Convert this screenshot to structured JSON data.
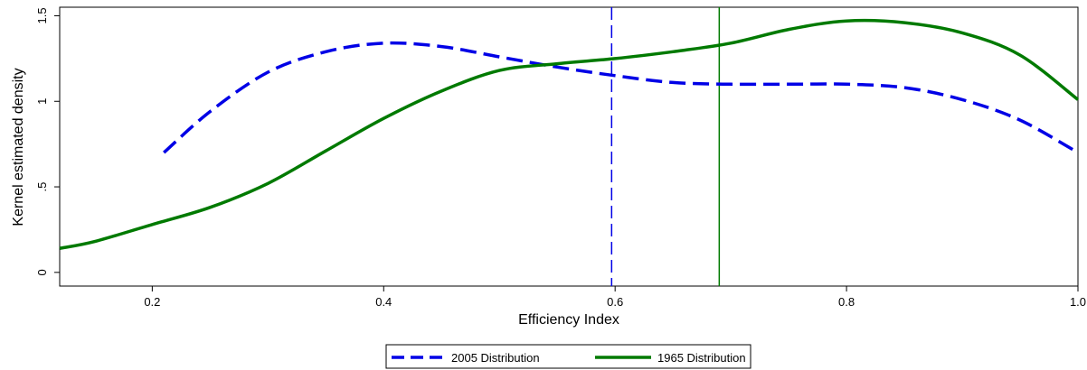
{
  "chart_data": {
    "type": "line",
    "xlabel": "Efficiency Index",
    "ylabel": "Kernel estimated density",
    "xlim": [
      0.12,
      1.0
    ],
    "ylim": [
      -0.08,
      1.55
    ],
    "x_ticks": [
      {
        "value": 0.2,
        "label": "0.2"
      },
      {
        "value": 0.4,
        "label": "0.4"
      },
      {
        "value": 0.6,
        "label": "0.6"
      },
      {
        "value": 0.8,
        "label": "0.8"
      },
      {
        "value": 1.0,
        "label": "1.0"
      }
    ],
    "y_ticks": [
      {
        "value": 0,
        "label": "0"
      },
      {
        "value": 0.5,
        "label": ".5"
      },
      {
        "value": 1,
        "label": "1"
      },
      {
        "value": 1.5,
        "label": "1.5"
      }
    ],
    "grid": false,
    "legend_position": "bottom-center",
    "series": [
      {
        "name": "2005 Distribution",
        "color": "#0000e6",
        "style": "dashed",
        "x": [
          0.21,
          0.25,
          0.3,
          0.35,
          0.4,
          0.45,
          0.5,
          0.55,
          0.6,
          0.65,
          0.7,
          0.75,
          0.8,
          0.85,
          0.9,
          0.95,
          1.0
        ],
        "y": [
          0.7,
          0.94,
          1.17,
          1.29,
          1.34,
          1.32,
          1.26,
          1.2,
          1.15,
          1.11,
          1.1,
          1.1,
          1.1,
          1.08,
          1.01,
          0.89,
          0.7
        ]
      },
      {
        "name": "1965 Distribution",
        "color": "#007a00",
        "style": "solid",
        "x": [
          0.12,
          0.15,
          0.2,
          0.25,
          0.3,
          0.35,
          0.4,
          0.45,
          0.5,
          0.55,
          0.6,
          0.65,
          0.7,
          0.75,
          0.8,
          0.85,
          0.9,
          0.95,
          1.0
        ],
        "y": [
          0.14,
          0.18,
          0.28,
          0.38,
          0.52,
          0.71,
          0.9,
          1.06,
          1.18,
          1.22,
          1.25,
          1.29,
          1.34,
          1.42,
          1.47,
          1.46,
          1.4,
          1.27,
          1.01
        ]
      }
    ],
    "reference_lines": [
      {
        "series": "2005 Distribution",
        "x": 0.597,
        "color": "#0000e6",
        "style": "dashed"
      },
      {
        "series": "1965 Distribution",
        "x": 0.69,
        "color": "#007a00",
        "style": "solid"
      }
    ]
  }
}
